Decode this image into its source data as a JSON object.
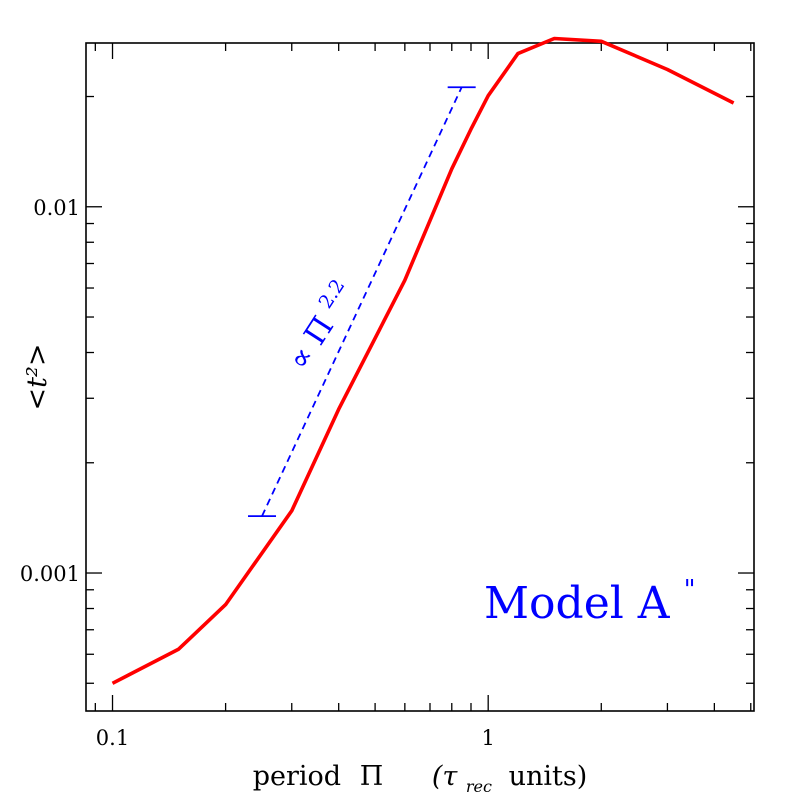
{
  "chart_data": {
    "type": "line",
    "xscale": "log",
    "yscale": "log",
    "xlim": [
      0.085,
      5.1
    ],
    "ylim": [
      0.00042,
      0.028
    ],
    "xlabel_parts": [
      "period",
      "Π",
      "(τ",
      "rec",
      "units)"
    ],
    "ylabel": "<t²>",
    "x_ticks": [
      {
        "value": 0.1,
        "label": "0.1"
      },
      {
        "value": 1,
        "label": "1"
      }
    ],
    "y_ticks": [
      {
        "value": 0.001,
        "label": "0.001"
      },
      {
        "value": 0.01,
        "label": "0.01"
      }
    ],
    "grid": false,
    "series": [
      {
        "color": "#ff0000",
        "x": [
          0.1,
          0.15,
          0.2,
          0.3,
          0.4,
          0.6,
          0.8,
          0.9,
          1.0,
          1.2,
          1.5,
          2.0,
          3.0,
          4.5
        ],
        "y": [
          0.0005,
          0.00062,
          0.00082,
          0.00148,
          0.0028,
          0.0063,
          0.0127,
          0.0163,
          0.0201,
          0.0262,
          0.0288,
          0.0283,
          0.0237,
          0.0192
        ]
      }
    ],
    "reference_line": {
      "color": "#0000ff",
      "style": "dashed",
      "x": [
        0.25,
        0.85
      ],
      "y": [
        0.00143,
        0.0212
      ],
      "label_prefix": "∝ Π",
      "label_exponent": "2.2"
    },
    "annotation": {
      "text": "Model A",
      "superscript": "\"",
      "color": "#0000ff",
      "placement": "bottom-right"
    }
  }
}
